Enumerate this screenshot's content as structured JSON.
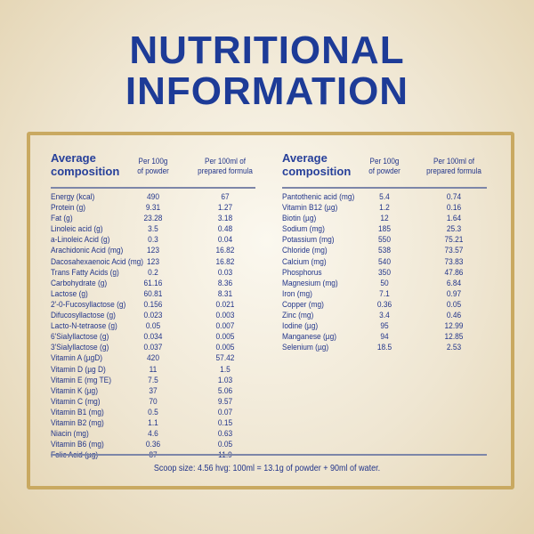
{
  "title": [
    "NUTRITIONAL",
    "INFORMATION"
  ],
  "headers": {
    "composition": [
      "Average",
      "composition"
    ],
    "per100g": [
      "Per 100g",
      "of powder"
    ],
    "per100ml": [
      "Per 100ml of",
      "prepared formula"
    ]
  },
  "left": [
    [
      "Energy (kcal)",
      "490",
      "67"
    ],
    [
      "Protein (g)",
      "9.31",
      "1.27"
    ],
    [
      "Fat (g)",
      "23.28",
      "3.18"
    ],
    [
      "Linoleic acid (g)",
      "3.5",
      "0.48"
    ],
    [
      "a-Linoleic Acid (g)",
      "0.3",
      "0.04"
    ],
    [
      "Arachidonic Acid (mg)",
      "123",
      "16.82"
    ],
    [
      "Dacosahexaenoic Acid (mg)",
      "123",
      "16.82"
    ],
    [
      "Trans Fatty Acids (g)",
      "0.2",
      "0.03"
    ],
    [
      "Carbohydrate (g)",
      "61.16",
      "8.36"
    ],
    [
      "Lactose (g)",
      "60.81",
      "8.31"
    ],
    [
      "2'-0-Fucosyllactose (g)",
      "0.156",
      "0.021"
    ],
    [
      "Difucosyllactose (g)",
      "0.023",
      "0.003"
    ],
    [
      "Lacto-N-tetraose (g)",
      "0.05",
      "0.007"
    ],
    [
      "6'Sialyllactose (g)",
      "0.034",
      "0.005"
    ],
    [
      "3'Sialyllactose (g)",
      "0.037",
      "0.005"
    ],
    [
      "Vitamin A (µgD)",
      "420",
      "57.42"
    ],
    [
      "Vitamin D (µg D)",
      "11",
      "1.5"
    ],
    [
      "Vitamin E (mg TE)",
      "7.5",
      "1.03"
    ],
    [
      "Vitamin K (µg)",
      "37",
      "5.06"
    ],
    [
      "Vitamin C (mg)",
      "70",
      "9.57"
    ],
    [
      "Vitamin B1 (mg)",
      "0.5",
      "0.07"
    ],
    [
      "Vitamin B2 (mg)",
      "1.1",
      "0.15"
    ],
    [
      "Niacin (mg)",
      "4.6",
      "0.63"
    ],
    [
      "Vitamin B6 (mg)",
      "0.36",
      "0.05"
    ],
    [
      "Folic Acid (µg)",
      "87",
      "11.9"
    ]
  ],
  "right": [
    [
      "Pantothenic acid (mg)",
      "5.4",
      "0.74"
    ],
    [
      "Vitamin B12 (µg)",
      "1.2",
      "0.16"
    ],
    [
      "Biotin (µg)",
      "12",
      "1.64"
    ],
    [
      "Sodium (mg)",
      "185",
      "25.3"
    ],
    [
      "Potassium (mg)",
      "550",
      "75.21"
    ],
    [
      "Chloride (mg)",
      "538",
      "73.57"
    ],
    [
      "Calcium (mg)",
      "540",
      "73.83"
    ],
    [
      "Phosphorus",
      "350",
      "47.86"
    ],
    [
      "Magnesium (mg)",
      "50",
      "6.84"
    ],
    [
      "Iron (mg)",
      "7.1",
      "0.97"
    ],
    [
      "Copper (mg)",
      "0.36",
      "0.05"
    ],
    [
      "Zinc (mg)",
      "3.4",
      "0.46"
    ],
    [
      "Iodine (µg)",
      "95",
      "12.99"
    ],
    [
      "Manganese (µg)",
      "94",
      "12.85"
    ],
    [
      "Selenium (µg)",
      "18.5",
      "2.53"
    ]
  ],
  "scoop": "Scoop size: 4.56  hvg: 100ml = 13.1g of powder + 90ml of water.",
  "colors": {
    "title": "#1d3b97",
    "frame": "#c9a961",
    "text": "#22358a"
  }
}
